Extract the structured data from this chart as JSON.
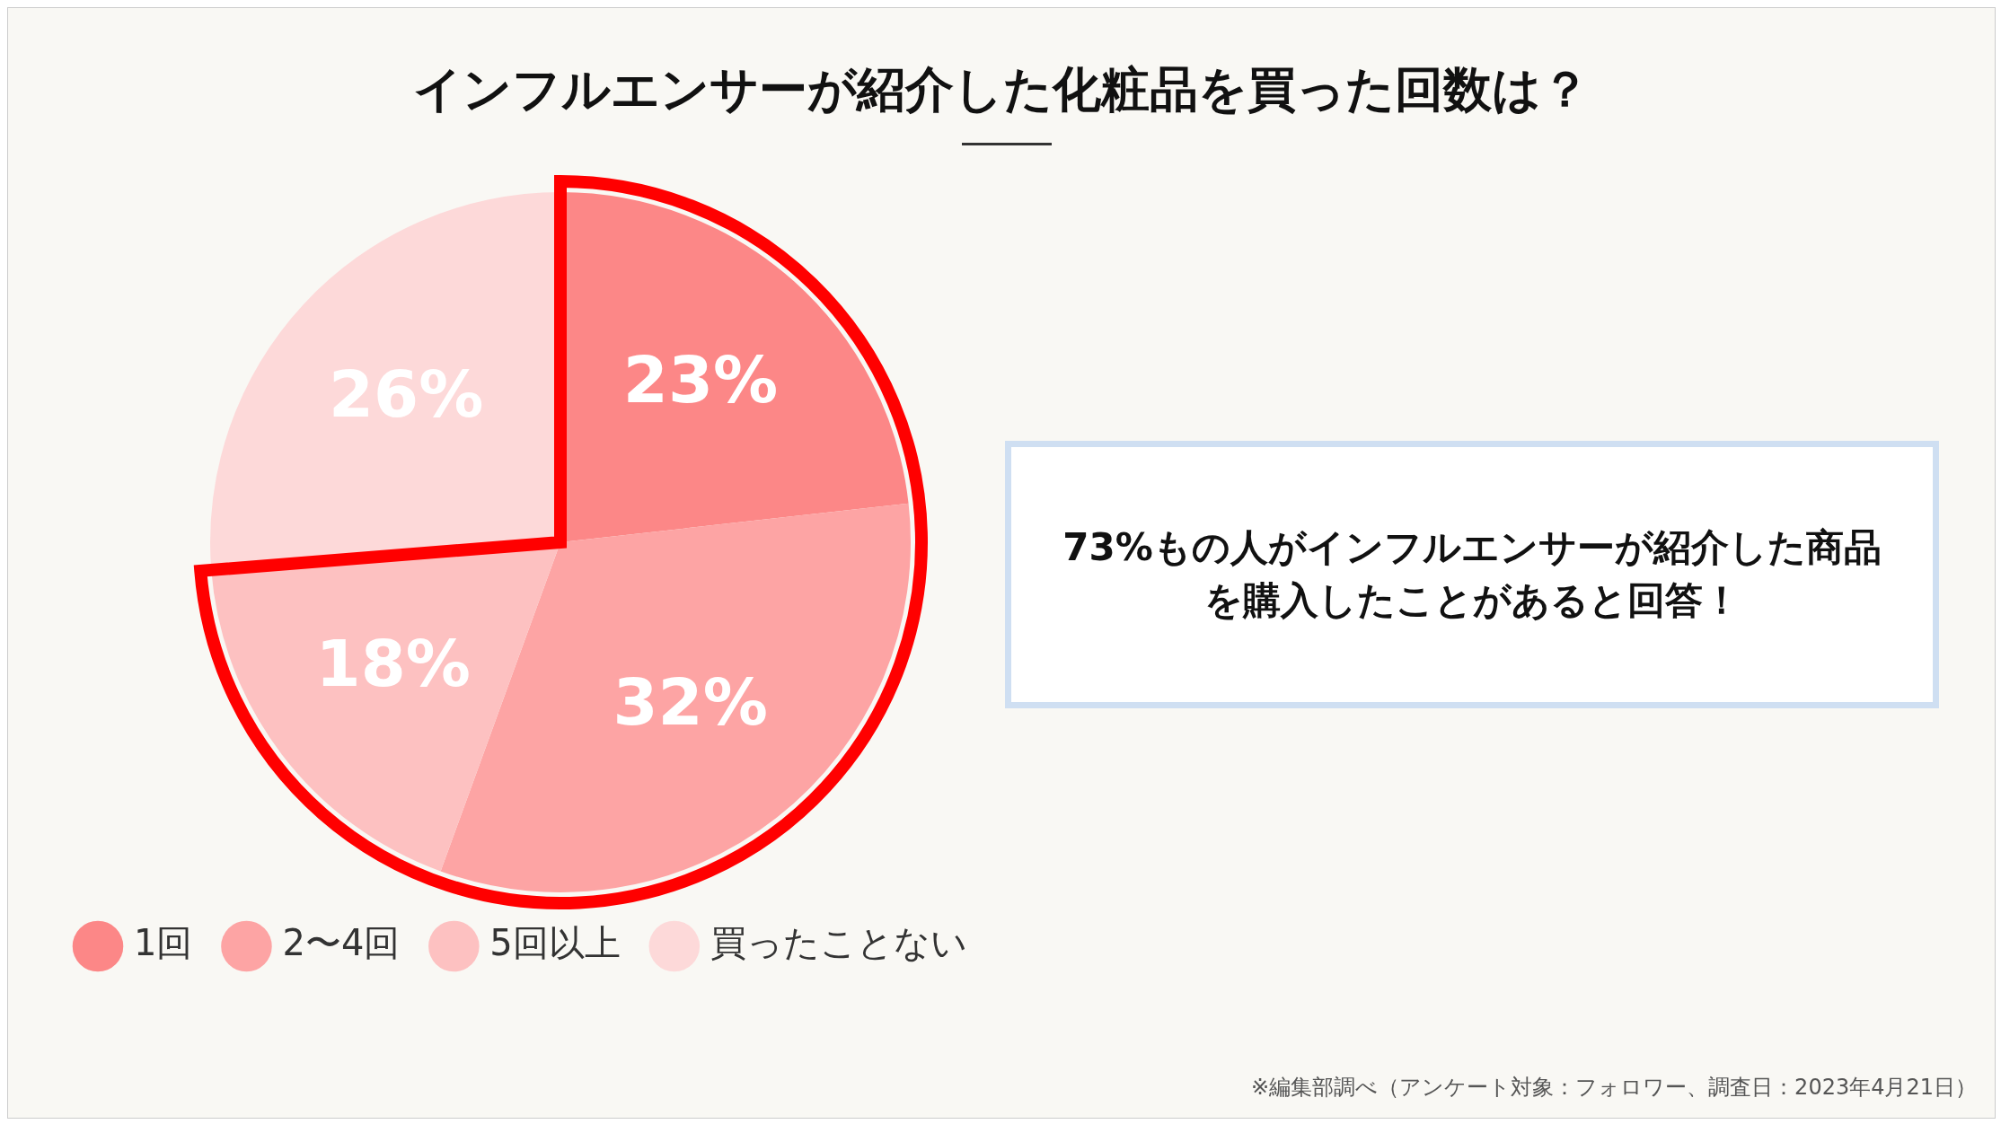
{
  "chart_data": {
    "type": "pie",
    "title": "インフルエンサーが紹介した化粧品を買った回数は？",
    "categories": [
      "1回",
      "2〜4回",
      "5回以上",
      "買ったことない"
    ],
    "values": [
      23,
      32,
      18,
      26
    ],
    "value_labels": [
      "23%",
      "32%",
      "18%",
      "26%"
    ],
    "colors": [
      "#fc8787",
      "#fda4a4",
      "#fdc1c1",
      "#fdd9d9"
    ],
    "legend": "bottom left",
    "annotations": [
      "73%もの人がインフルエンサーが紹介した商品を購入したことがあると回答！",
      "※編集部調べ（アンケート対象：フォロワー、調査日：2023年4月21日）"
    ]
  }
}
